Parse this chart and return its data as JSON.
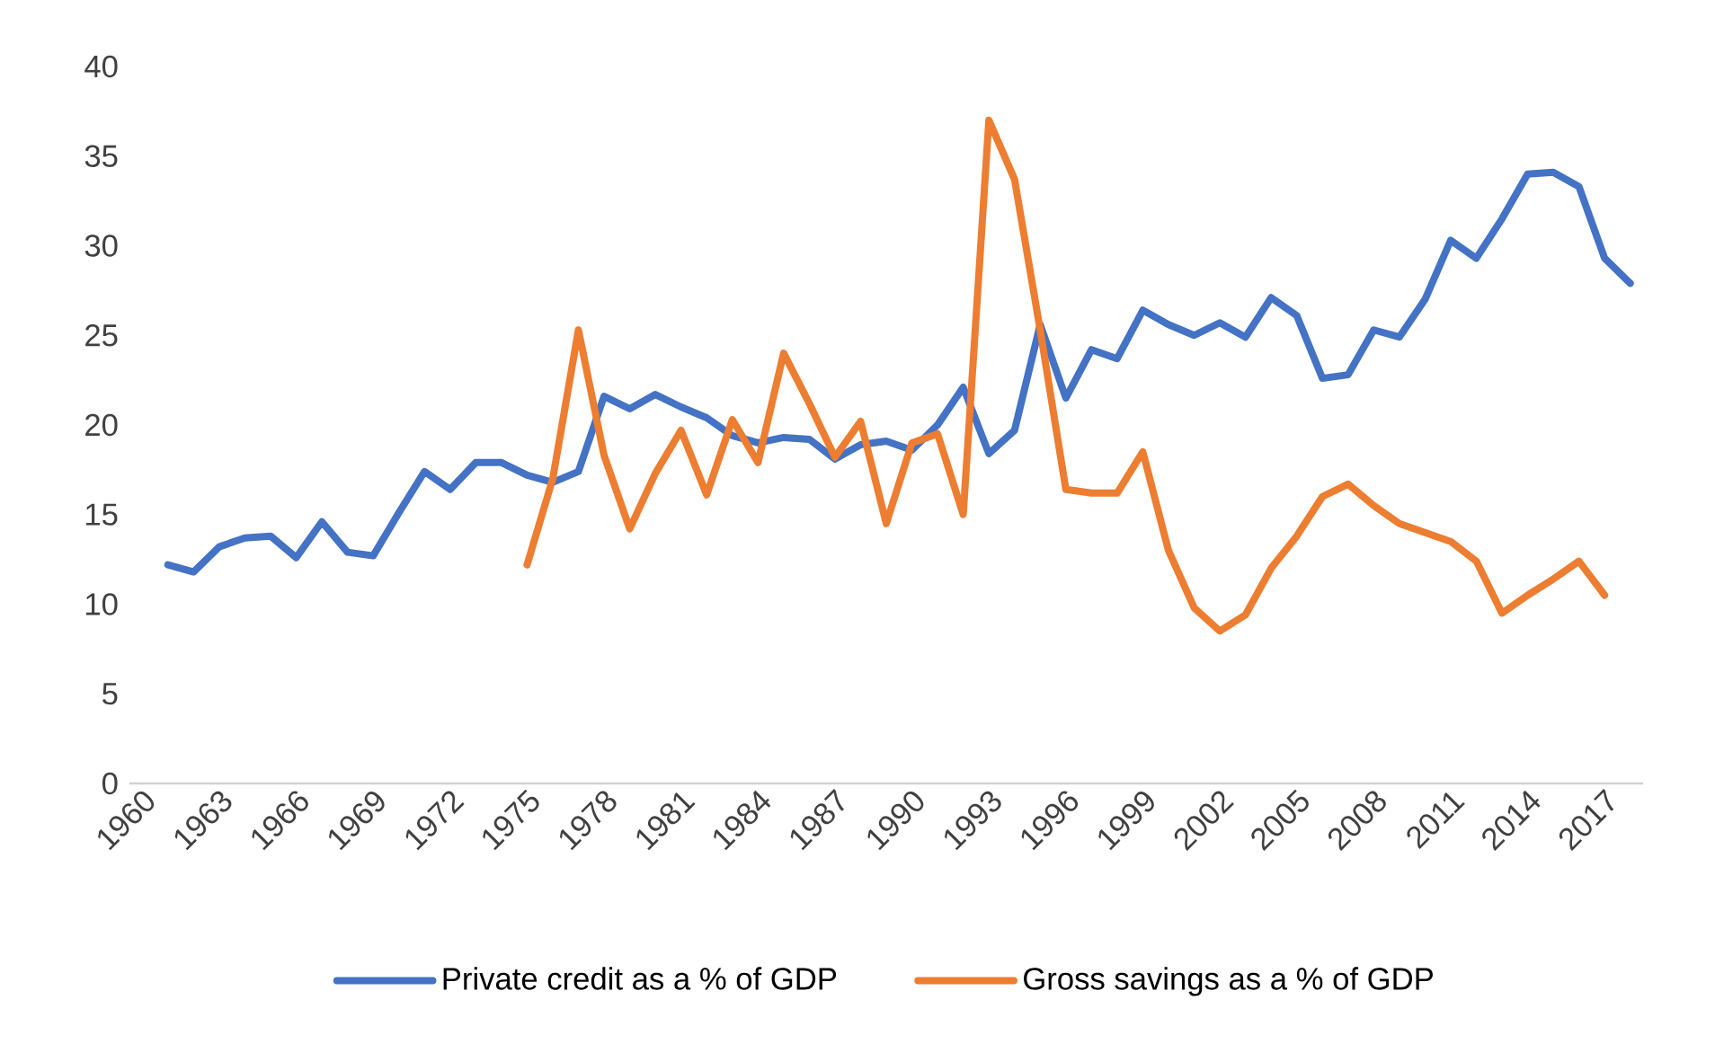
{
  "chart_data": {
    "type": "line",
    "categories": [
      "1960",
      null,
      null,
      "1963",
      null,
      null,
      "1966",
      null,
      null,
      "1969",
      null,
      null,
      "1972",
      null,
      null,
      "1975",
      null,
      null,
      "1978",
      null,
      null,
      "1981",
      null,
      null,
      "1984",
      null,
      null,
      "1987",
      null,
      null,
      "1990",
      null,
      null,
      "1993",
      null,
      null,
      "1996",
      null,
      null,
      "1999",
      null,
      null,
      "2002",
      null,
      null,
      "2005",
      null,
      null,
      "2008",
      null,
      null,
      "2011",
      null,
      null,
      "2014",
      null,
      null,
      "2017",
      null
    ],
    "series": [
      {
        "name": "Private credit as a % of GDP",
        "color": "#4472c4",
        "values": [
          null,
          12.2,
          11.8,
          13.2,
          13.7,
          13.8,
          12.6,
          14.6,
          12.9,
          12.7,
          15.1,
          17.4,
          16.4,
          17.9,
          17.9,
          17.2,
          16.8,
          17.4,
          21.6,
          20.9,
          21.7,
          21.0,
          20.4,
          19.4,
          19.0,
          19.3,
          19.2,
          18.1,
          18.9,
          19.1,
          18.6,
          20.0,
          22.1,
          18.4,
          19.7,
          25.6,
          21.5,
          24.2,
          23.7,
          26.4,
          25.6,
          25.0,
          25.7,
          24.9,
          27.1,
          26.1,
          22.6,
          22.8,
          25.3,
          24.9,
          27.0,
          30.3,
          29.3,
          31.5,
          34.0,
          34.1,
          33.3,
          29.3,
          27.9
        ]
      },
      {
        "name": "Gross savings as a % of GDP",
        "color": "#ed7d31",
        "values": [
          null,
          null,
          null,
          null,
          null,
          null,
          null,
          null,
          null,
          null,
          null,
          null,
          null,
          null,
          null,
          12.2,
          17.0,
          25.3,
          18.3,
          14.2,
          17.3,
          19.7,
          16.1,
          20.3,
          17.9,
          24.0,
          21.2,
          18.2,
          20.2,
          14.5,
          19.0,
          19.5,
          15.0,
          37.0,
          33.7,
          25.3,
          16.4,
          16.2,
          16.2,
          18.5,
          13.0,
          9.8,
          8.5,
          9.4,
          12.0,
          13.8,
          16.0,
          16.7,
          15.5,
          14.5,
          14.0,
          13.5,
          12.4,
          9.5,
          10.5,
          11.4,
          12.4,
          10.5,
          null
        ]
      }
    ],
    "ylim": [
      0,
      40
    ],
    "yticks": [
      0,
      5,
      10,
      15,
      20,
      25,
      30,
      35,
      40
    ],
    "grid": false,
    "legend": "bottom",
    "line_style": "solid"
  }
}
